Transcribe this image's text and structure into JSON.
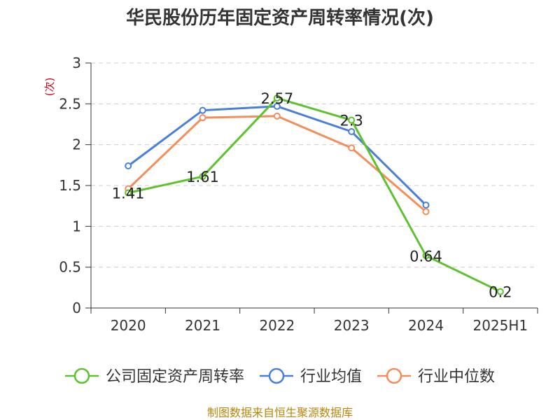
{
  "title": "华民股份历年固定资产周转率情况(次)",
  "source": "制图数据来自恒生聚源数据库",
  "chart_data": {
    "type": "line",
    "title": "华民股份历年固定资产周转率情况(次)",
    "ylabel": "(次)",
    "xlabel": "",
    "ylim": [
      0,
      3
    ],
    "yticks": [
      "0",
      "0.5",
      "1",
      "1.5",
      "2",
      "2.5",
      "3"
    ],
    "categories": [
      "2020",
      "2021",
      "2022",
      "2023",
      "2024",
      "2025H1"
    ],
    "grid": true,
    "legend_position": "bottom",
    "series": [
      {
        "name": "公司固定资产周转率",
        "color": "#5ec22f",
        "values": [
          1.41,
          1.61,
          2.57,
          2.3,
          0.64,
          0.2
        ],
        "labels": [
          "1.41",
          "1.61",
          "2.57",
          "2.3",
          "0.64",
          "0.2"
        ]
      },
      {
        "name": "行业均值",
        "color": "#4a7fd6",
        "values": [
          1.74,
          2.42,
          2.47,
          2.16,
          1.26,
          null
        ]
      },
      {
        "name": "行业中位数",
        "color": "#f28e5c",
        "values": [
          1.46,
          2.33,
          2.35,
          1.96,
          1.18,
          null
        ]
      }
    ]
  }
}
